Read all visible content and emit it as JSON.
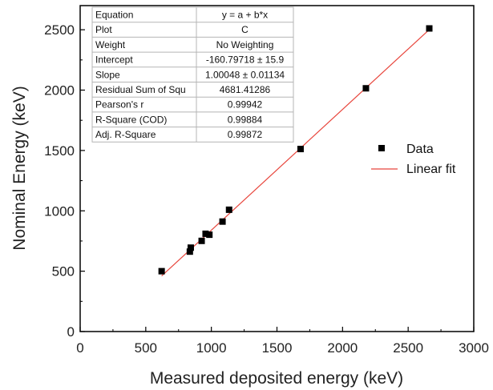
{
  "chart_data": {
    "type": "scatter",
    "xlabel": "Measured deposited energy (keV)",
    "ylabel": "Nominal Energy (keV)",
    "xlim": [
      0,
      3000
    ],
    "ylim": [
      0,
      2700
    ],
    "x_ticks": [
      "0",
      "500",
      "1000",
      "1500",
      "2000",
      "2500",
      "3000"
    ],
    "y_ticks": [
      "0",
      "500",
      "1000",
      "1500",
      "2000",
      "2500"
    ],
    "grid": false,
    "legend_position": "right",
    "series": [
      {
        "name": "Data",
        "marker": "square",
        "color": "#000000",
        "points": [
          {
            "x": 621,
            "y": 500
          },
          {
            "x": 836,
            "y": 662
          },
          {
            "x": 843,
            "y": 695
          },
          {
            "x": 926,
            "y": 751
          },
          {
            "x": 956,
            "y": 810
          },
          {
            "x": 985,
            "y": 802
          },
          {
            "x": 1085,
            "y": 911
          },
          {
            "x": 1135,
            "y": 1009
          },
          {
            "x": 1680,
            "y": 1512
          },
          {
            "x": 2178,
            "y": 2015
          },
          {
            "x": 2661,
            "y": 2511
          }
        ]
      },
      {
        "name": "Linear fit",
        "type": "line",
        "color": "#e8453c",
        "x": [
          621,
          2661
        ]
      }
    ],
    "fit": {
      "intercept": -160.79718,
      "slope": 1.00048
    },
    "stats_table": [
      {
        "label": "Equation",
        "value": "y = a + b*x"
      },
      {
        "label": "Plot",
        "value": "C"
      },
      {
        "label": "Weight",
        "value": "No Weighting"
      },
      {
        "label": "Intercept",
        "value": "-160.79718 ± 15.9"
      },
      {
        "label": "Slope",
        "value": "1.00048 ± 0.01134"
      },
      {
        "label": "Residual Sum of Squ",
        "value": "4681.41286"
      },
      {
        "label": "Pearson's r",
        "value": "0.99942"
      },
      {
        "label": "R-Square (COD)",
        "value": "0.99884"
      },
      {
        "label": "Adj. R-Square",
        "value": "0.99872"
      }
    ]
  }
}
